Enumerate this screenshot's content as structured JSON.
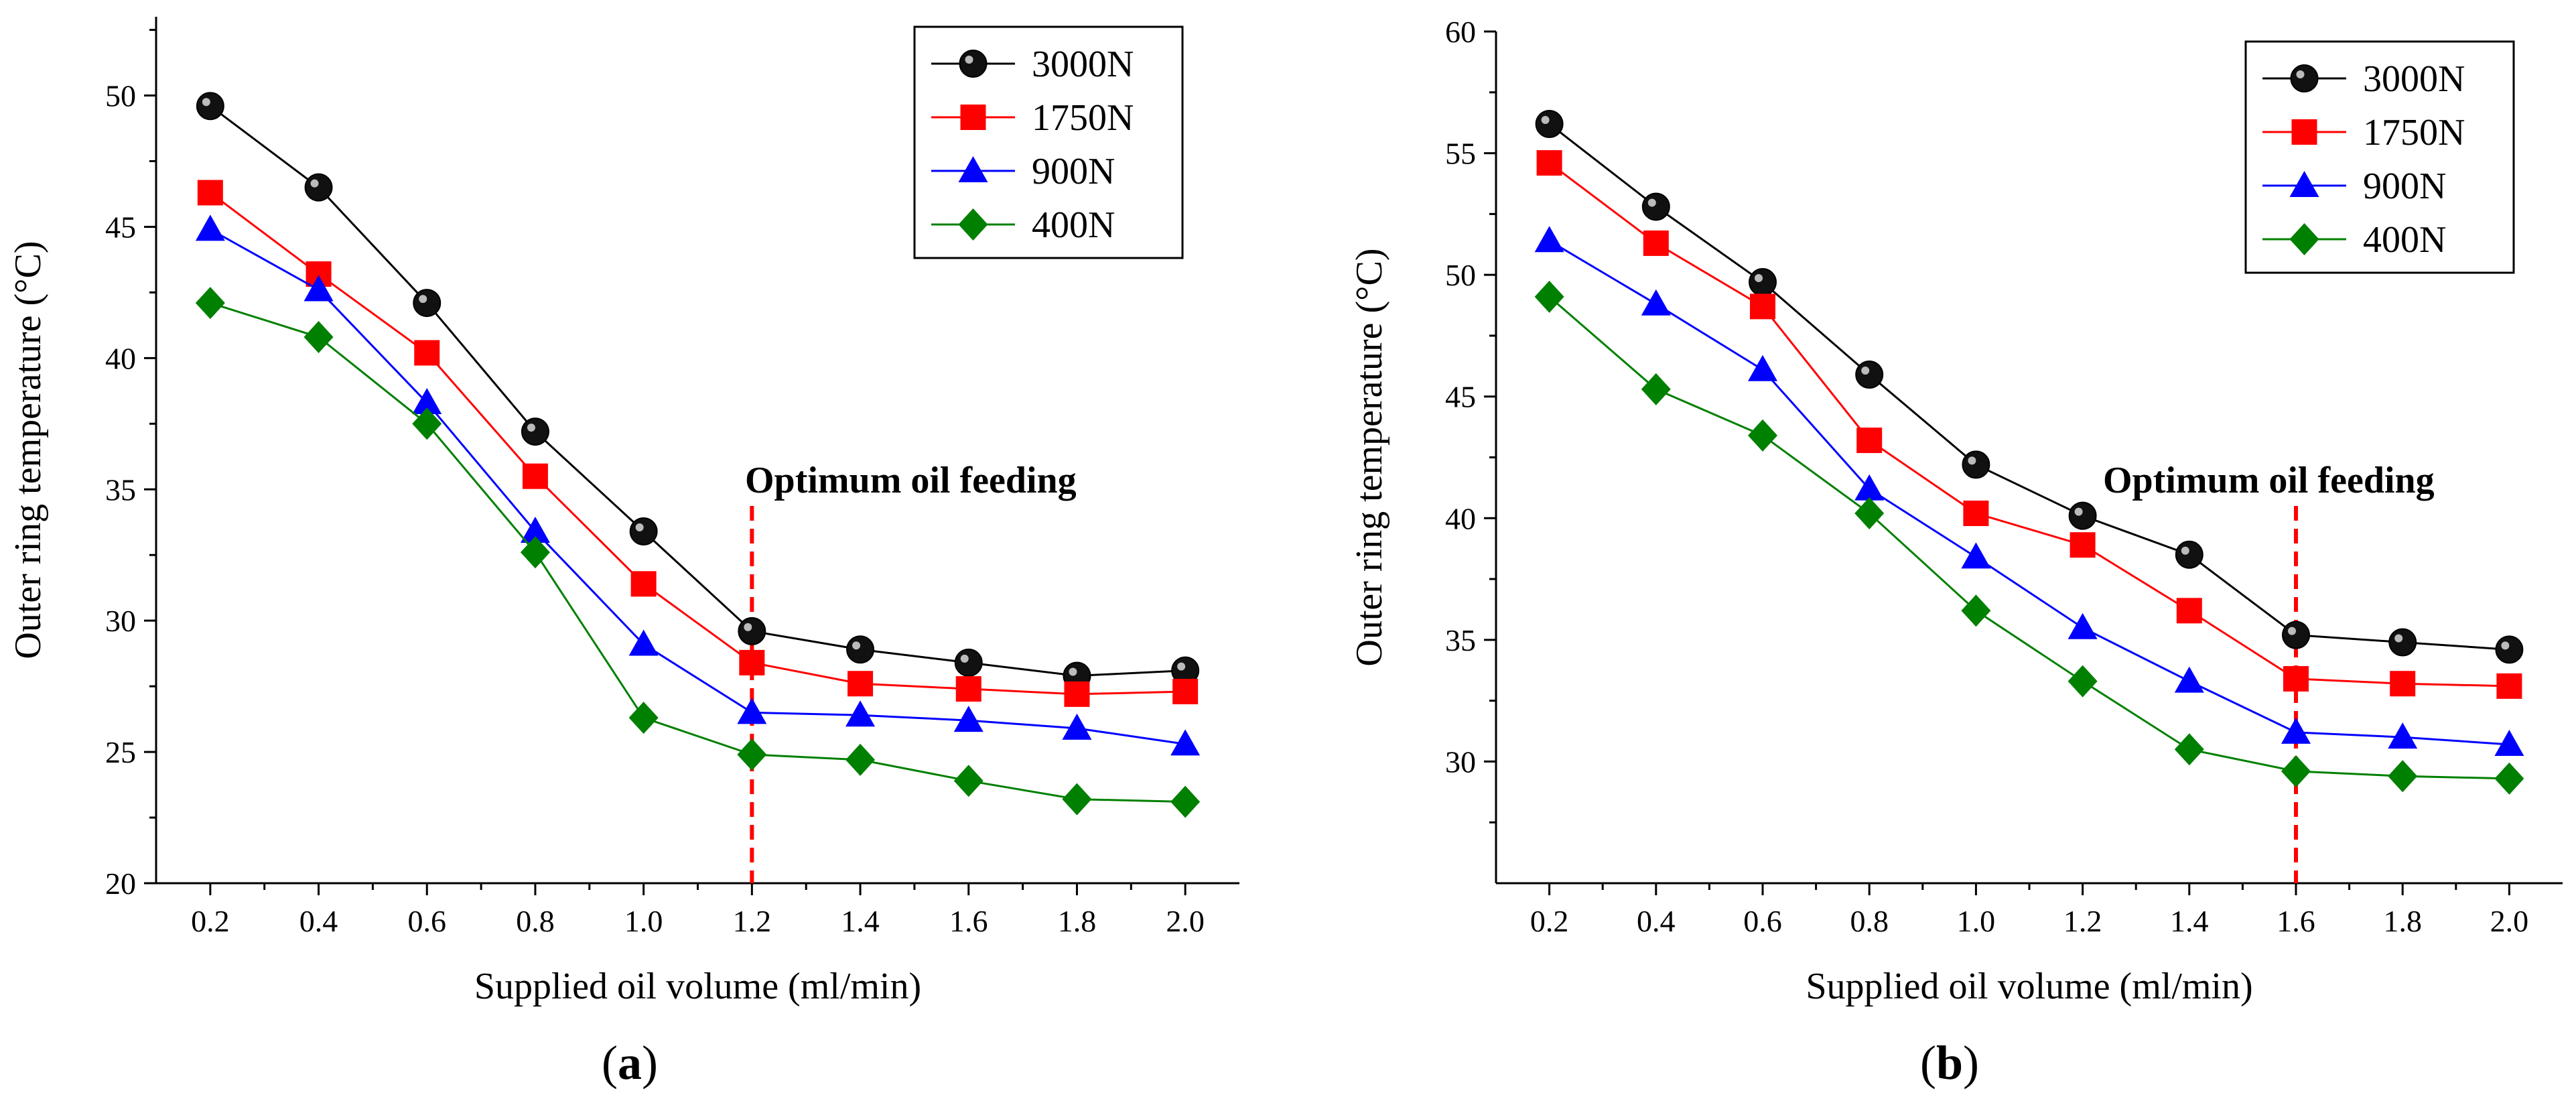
{
  "chart_data": [
    {
      "panel": "a",
      "panel_label": "a",
      "type": "line",
      "title": "",
      "xlabel": "Supplied oil volume (ml/min)",
      "ylabel": "Outer ring temperature (°C)",
      "x": [
        0.2,
        0.4,
        0.6,
        0.8,
        1.0,
        1.2,
        1.4,
        1.6,
        1.8,
        2.0
      ],
      "x_tick_labels": [
        "0.2",
        "0.4",
        "0.6",
        "0.8",
        "1.0",
        "1.2",
        "1.4",
        "1.6",
        "1.8",
        "2.0"
      ],
      "xlim": [
        0.1,
        2.1
      ],
      "ylim": [
        20,
        53
      ],
      "y_ticks": [
        20,
        25,
        30,
        35,
        40,
        45,
        50
      ],
      "y_tick_labels": [
        "20",
        "25",
        "30",
        "35",
        "40",
        "45",
        "50"
      ],
      "legend_position": "top-right",
      "series": [
        {
          "name": "3000N",
          "color": "#000000",
          "marker": "circle",
          "values": [
            49.6,
            46.5,
            42.1,
            37.2,
            33.4,
            29.6,
            28.9,
            28.4,
            27.9,
            28.1
          ]
        },
        {
          "name": "1750N",
          "color": "#ff0000",
          "marker": "square",
          "values": [
            46.3,
            43.2,
            40.2,
            35.5,
            31.4,
            28.4,
            27.6,
            27.4,
            27.2,
            27.3
          ]
        },
        {
          "name": "900N",
          "color": "#0000ff",
          "marker": "triangle",
          "values": [
            44.9,
            42.6,
            38.3,
            33.4,
            29.1,
            26.5,
            26.4,
            26.2,
            25.9,
            25.3
          ]
        },
        {
          "name": "400N",
          "color": "#008000",
          "marker": "diamond",
          "values": [
            42.1,
            40.8,
            37.5,
            32.6,
            26.3,
            24.9,
            24.7,
            23.9,
            23.2,
            23.1
          ]
        }
      ],
      "annotations": [
        {
          "text": "Optimum oil feeding",
          "x": 1.2,
          "line_color": "#ff0000"
        }
      ]
    },
    {
      "panel": "b",
      "panel_label": "b",
      "type": "line",
      "title": "",
      "xlabel": "Supplied oil volume (ml/min)",
      "ylabel": "Outer ring temperature (°C)",
      "x": [
        0.2,
        0.4,
        0.6,
        0.8,
        1.0,
        1.2,
        1.4,
        1.6,
        1.8,
        2.0
      ],
      "x_tick_labels": [
        "0.2",
        "0.4",
        "0.6",
        "0.8",
        "1.0",
        "1.2",
        "1.4",
        "1.6",
        "1.8",
        "2.0"
      ],
      "xlim": [
        0.1,
        2.1
      ],
      "ylim": [
        25,
        60
      ],
      "y_ticks": [
        30,
        35,
        40,
        45,
        50,
        55,
        60
      ],
      "y_tick_labels": [
        "30",
        "35",
        "40",
        "45",
        "50",
        "55",
        "60"
      ],
      "legend_position": "top-right",
      "series": [
        {
          "name": "3000N",
          "color": "#000000",
          "marker": "circle",
          "values": [
            56.2,
            52.8,
            49.7,
            45.9,
            42.2,
            40.1,
            38.5,
            35.2,
            34.9,
            34.6
          ]
        },
        {
          "name": "1750N",
          "color": "#ff0000",
          "marker": "square",
          "values": [
            54.6,
            51.3,
            48.7,
            43.2,
            40.2,
            38.9,
            36.2,
            33.4,
            33.2,
            33.1
          ]
        },
        {
          "name": "900N",
          "color": "#0000ff",
          "marker": "triangle",
          "values": [
            51.4,
            48.8,
            46.1,
            41.2,
            38.4,
            35.5,
            33.3,
            31.2,
            31.0,
            30.7
          ]
        },
        {
          "name": "400N",
          "color": "#008000",
          "marker": "diamond",
          "values": [
            49.1,
            45.3,
            43.4,
            40.2,
            36.2,
            33.3,
            30.5,
            29.6,
            29.4,
            29.3
          ]
        }
      ],
      "annotations": [
        {
          "text": "Optimum oil feeding",
          "x": 1.6,
          "line_color": "#ff0000"
        }
      ]
    }
  ]
}
